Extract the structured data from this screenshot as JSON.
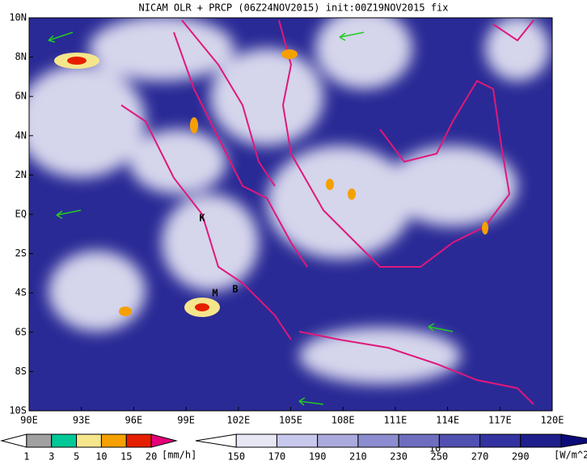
{
  "title": "NICAM OLR + PRCP (06Z24NOV2015) init:00Z19NOV2015 fix",
  "lat_labels": [
    "10N",
    "8N",
    "6N",
    "4N",
    "2N",
    "EQ",
    "2S",
    "4S",
    "6S",
    "8S",
    "10S"
  ],
  "lon_labels": [
    "90E",
    "93E",
    "96E",
    "99E",
    "102E",
    "105E",
    "108E",
    "111E",
    "114E",
    "117E",
    "120E"
  ],
  "places": [
    "K",
    "M",
    "B"
  ],
  "vector_reference": "10",
  "precip_colorbar": {
    "labels": [
      "1",
      "3",
      "5",
      "10",
      "15",
      "20"
    ],
    "unit": "[mm/h]",
    "colors": [
      "#ffffff",
      "#a0a0a0",
      "#00c896",
      "#f5e68c",
      "#f5a000",
      "#e61e00",
      "#e6007a"
    ]
  },
  "olr_colorbar": {
    "labels": [
      "150",
      "170",
      "190",
      "210",
      "230",
      "250",
      "270",
      "290"
    ],
    "unit": "[W/m^2]",
    "colors": [
      "#ffffff",
      "#e6e6f5",
      "#c8c8ec",
      "#aaaadc",
      "#8c8cd0",
      "#6e6ec0",
      "#5050b0",
      "#3232a0",
      "#1e1e8c",
      "#0a0a78"
    ]
  }
}
